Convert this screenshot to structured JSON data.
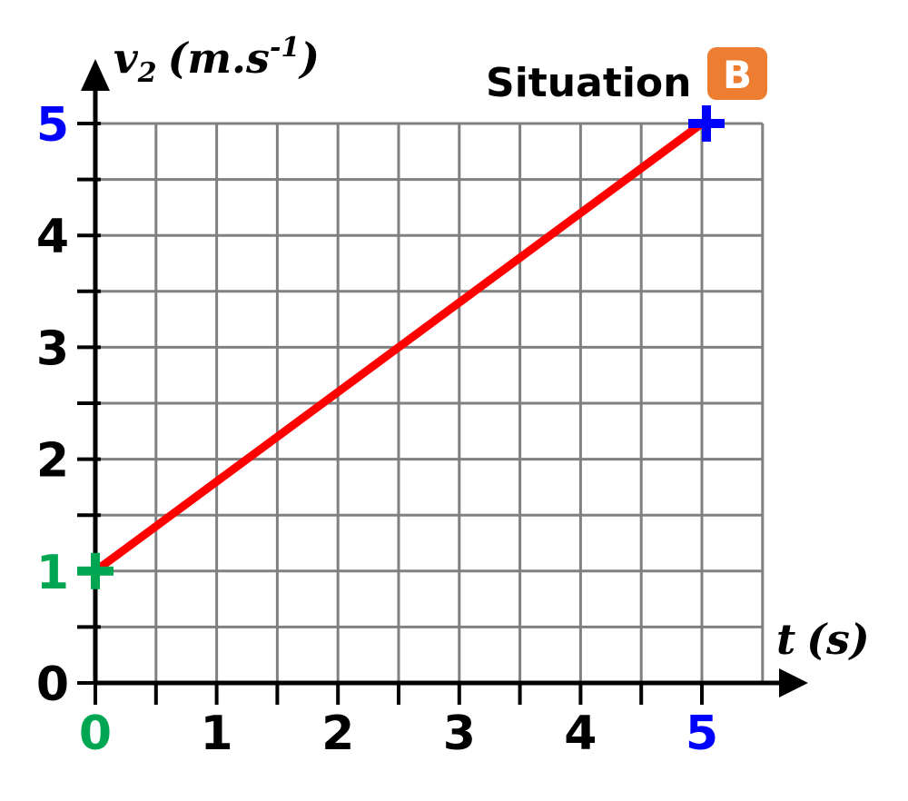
{
  "chart_data": {
    "type": "line",
    "xlabel": "t (s)",
    "ylabel_main": "v",
    "ylabel_sub": "2",
    "ylabel_unit": "(m.s",
    "ylabel_exp": "-1",
    "ylabel_close": ")",
    "xlabel_main": "t",
    "xlabel_unit": "(s)",
    "xlim": [
      0,
      5.5
    ],
    "ylim": [
      0,
      5
    ],
    "grid": true,
    "x_ticks": [
      "0",
      "1",
      "2",
      "3",
      "4",
      "5"
    ],
    "y_ticks": [
      "0",
      "1",
      "2",
      "3",
      "4",
      "5"
    ],
    "series": [
      {
        "x": [
          0,
          5
        ],
        "y": [
          1,
          5
        ]
      }
    ],
    "points": [
      {
        "x": 0,
        "y": 1
      },
      {
        "x": 5,
        "y": 5
      }
    ],
    "annotation": {
      "text": "Situation",
      "badge": "B"
    }
  },
  "colors": {
    "line": "#ff0000",
    "grid": "#808080",
    "axis": "#000000",
    "start_point": "#00a651",
    "end_point": "#0000ff",
    "badge": "#ed7d31"
  }
}
